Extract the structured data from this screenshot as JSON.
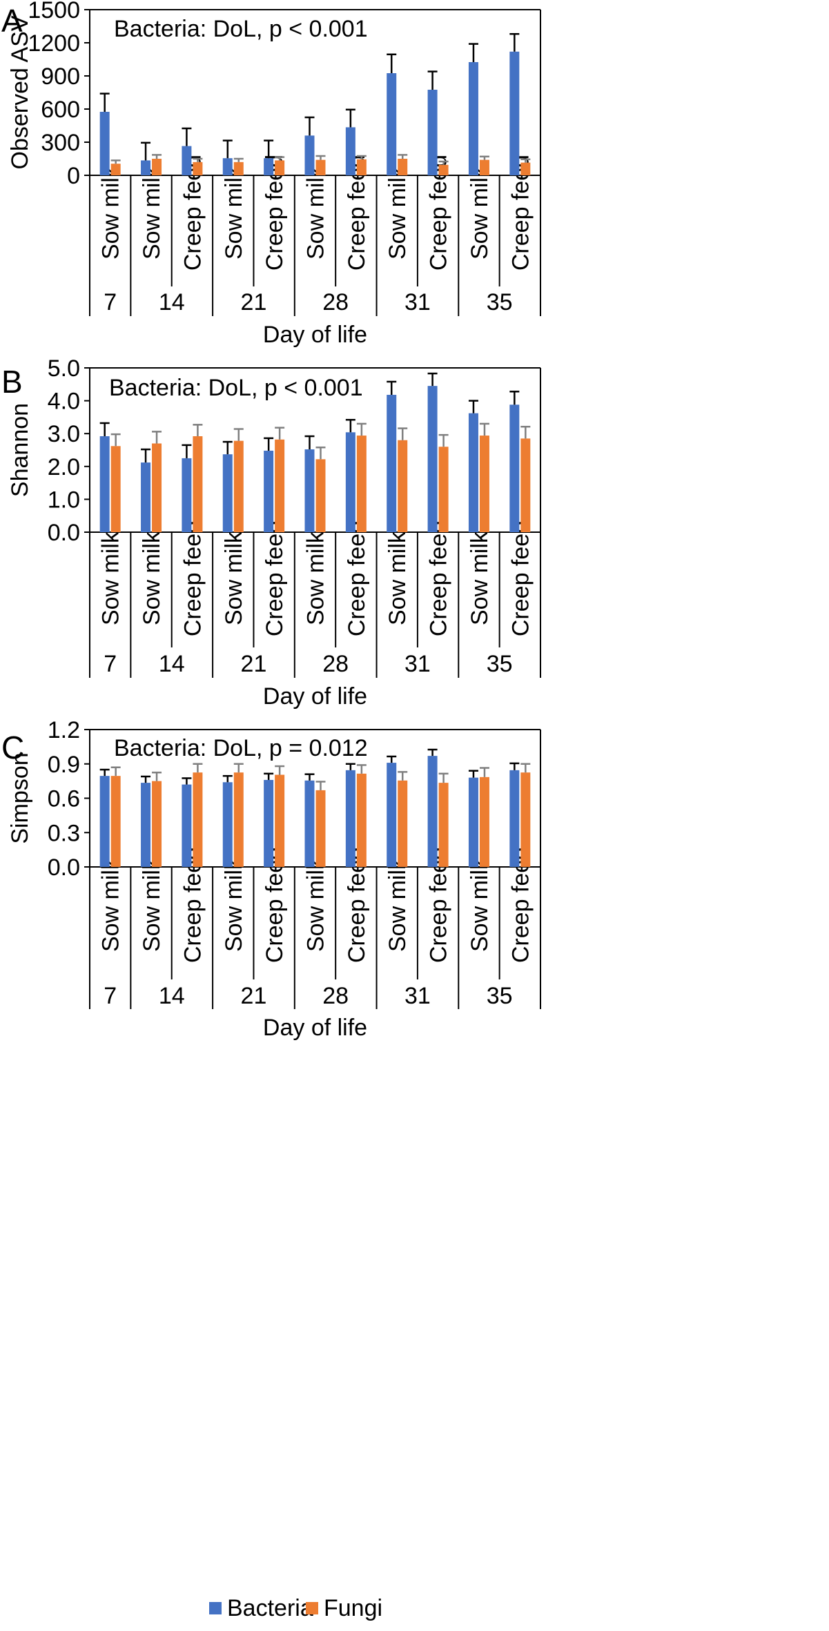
{
  "colors": {
    "bacteria": "#4472C4",
    "fungi": "#ED7D31",
    "axis": "#000000"
  },
  "legend": {
    "items": [
      {
        "label": "Bacteria"
      },
      {
        "label": "Fungi"
      }
    ]
  },
  "chart_data": [
    {
      "type": "bar",
      "panel": "A",
      "ylabel": "Observed ASV",
      "xlabel": "Day of life",
      "annotation": "Bacteria: DoL, p < 0.001",
      "ylim": [
        0,
        1500
      ],
      "yticks": [
        "0",
        "300",
        "600",
        "900",
        "1200",
        "1500"
      ],
      "categories": [
        "Sow milk",
        "Sow milk",
        "Creep feed",
        "Sow milk",
        "Creep feed",
        "Sow milk",
        "Creep feed",
        "Sow milk",
        "Creep feed",
        "Sow milk",
        "Creep feed"
      ],
      "days": [
        {
          "label": "7",
          "span": 1
        },
        {
          "label": "14",
          "span": 2
        },
        {
          "label": "21",
          "span": 2
        },
        {
          "label": "28",
          "span": 2
        },
        {
          "label": "31",
          "span": 2
        },
        {
          "label": "35",
          "span": 2
        }
      ],
      "series": [
        {
          "name": "Bacteria",
          "values": [
            575,
            135,
            265,
            155,
            155,
            360,
            435,
            925,
            775,
            1025,
            1120
          ],
          "errors": [
            165,
            160,
            160,
            160,
            160,
            165,
            160,
            170,
            165,
            165,
            160
          ]
        },
        {
          "name": "Fungi",
          "values": [
            105,
            150,
            120,
            120,
            135,
            140,
            145,
            150,
            95,
            140,
            115
          ],
          "errors": [
            30,
            35,
            30,
            30,
            30,
            35,
            30,
            35,
            30,
            30,
            30
          ]
        }
      ]
    },
    {
      "type": "bar",
      "panel": "B",
      "ylabel": "Shannon",
      "xlabel": "Day of life",
      "annotation": "Bacteria: DoL, p < 0.001",
      "ylim": [
        0,
        5
      ],
      "yticks": [
        "0.0",
        "1.0",
        "2.0",
        "3.0",
        "4.0",
        "5.0"
      ],
      "categories": [
        "Sow milk",
        "Sow milk",
        "Creep feed",
        "Sow milk",
        "Creep feed",
        "Sow milk",
        "Creep feed",
        "Sow milk",
        "Creep feed",
        "Sow milk",
        "Creep feed"
      ],
      "days": [
        {
          "label": "7",
          "span": 1
        },
        {
          "label": "14",
          "span": 2
        },
        {
          "label": "21",
          "span": 2
        },
        {
          "label": "28",
          "span": 2
        },
        {
          "label": "31",
          "span": 2
        },
        {
          "label": "35",
          "span": 2
        }
      ],
      "series": [
        {
          "name": "Bacteria",
          "values": [
            2.92,
            2.12,
            2.25,
            2.37,
            2.48,
            2.52,
            3.04,
            4.18,
            4.45,
            3.62,
            3.88
          ],
          "errors": [
            0.4,
            0.4,
            0.4,
            0.38,
            0.38,
            0.4,
            0.38,
            0.4,
            0.38,
            0.38,
            0.4
          ]
        },
        {
          "name": "Fungi",
          "values": [
            2.62,
            2.7,
            2.92,
            2.78,
            2.82,
            2.22,
            2.94,
            2.8,
            2.6,
            2.94,
            2.85
          ],
          "errors": [
            0.36,
            0.36,
            0.35,
            0.36,
            0.36,
            0.36,
            0.36,
            0.36,
            0.36,
            0.36,
            0.36
          ]
        }
      ]
    },
    {
      "type": "bar",
      "panel": "C",
      "ylabel": "Simpson",
      "xlabel": "Day of life",
      "annotation": "Bacteria: DoL, p = 0.012",
      "ylim": [
        0,
        1.2
      ],
      "yticks": [
        "0.0",
        "0.3",
        "0.6",
        "0.9",
        "1.2"
      ],
      "categories": [
        "Sow milk",
        "Sow milk",
        "Creep feed",
        "Sow milk",
        "Creep feed",
        "Sow milk",
        "Creep feed",
        "Sow milk",
        "Creep feed",
        "Sow milk",
        "Creep feed"
      ],
      "days": [
        {
          "label": "7",
          "span": 1
        },
        {
          "label": "14",
          "span": 2
        },
        {
          "label": "21",
          "span": 2
        },
        {
          "label": "28",
          "span": 2
        },
        {
          "label": "31",
          "span": 2
        },
        {
          "label": "35",
          "span": 2
        }
      ],
      "series": [
        {
          "name": "Bacteria",
          "values": [
            0.795,
            0.735,
            0.72,
            0.74,
            0.76,
            0.755,
            0.845,
            0.91,
            0.97,
            0.78,
            0.845
          ],
          "errors": [
            0.055,
            0.055,
            0.055,
            0.055,
            0.055,
            0.055,
            0.055,
            0.055,
            0.055,
            0.06,
            0.06
          ]
        },
        {
          "name": "Fungi",
          "values": [
            0.795,
            0.75,
            0.825,
            0.825,
            0.805,
            0.67,
            0.815,
            0.755,
            0.735,
            0.785,
            0.825
          ],
          "errors": [
            0.075,
            0.075,
            0.075,
            0.075,
            0.075,
            0.075,
            0.075,
            0.075,
            0.08,
            0.08,
            0.075
          ]
        }
      ]
    }
  ]
}
